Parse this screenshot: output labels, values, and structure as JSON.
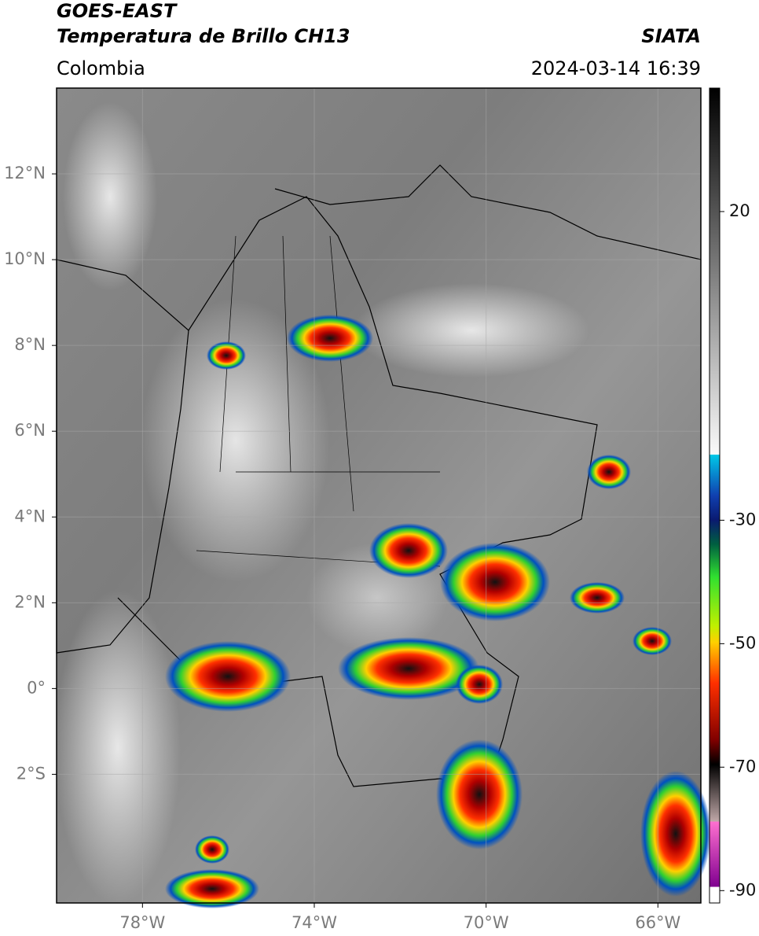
{
  "header": {
    "title": "GOES-EAST",
    "subtitle": "Temperatura de Brillo CH13",
    "source": "SIATA",
    "region": "Colombia",
    "datetime": "2024-03-14 16:39"
  },
  "map": {
    "xlim": [
      -80,
      -65
    ],
    "ylim": [
      -5,
      14
    ],
    "xticks": [
      {
        "value": -78,
        "label": "78°W"
      },
      {
        "value": -74,
        "label": "74°W"
      },
      {
        "value": -70,
        "label": "70°W"
      },
      {
        "value": -66,
        "label": "66°W"
      }
    ],
    "yticks": [
      {
        "value": 12,
        "label": "12°N"
      },
      {
        "value": 10,
        "label": "10°N"
      },
      {
        "value": 8,
        "label": "8°N"
      },
      {
        "value": 6,
        "label": "6°N"
      },
      {
        "value": 4,
        "label": "4°N"
      },
      {
        "value": 2,
        "label": "2°N"
      },
      {
        "value": 0,
        "label": "0°"
      },
      {
        "value": -2,
        "label": "2°S"
      }
    ]
  },
  "colorbar": {
    "lim": [
      -92,
      40
    ],
    "ticks": [
      20,
      -30,
      -50,
      -70,
      -90
    ]
  }
}
